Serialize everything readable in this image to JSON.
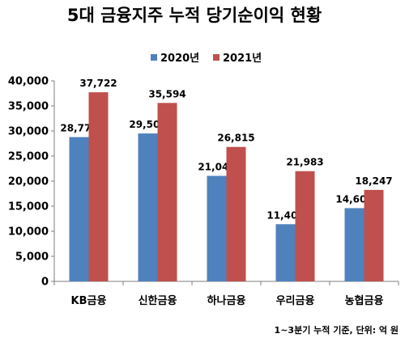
{
  "chart_data": {
    "type": "bar",
    "title": "5대 금융지주 누적 당기순이익 현황",
    "categories": [
      "KB금융",
      "신한금융",
      "하나금융",
      "우리금융",
      "농협금융"
    ],
    "series": [
      {
        "name": "2020년",
        "values": [
          28779,
          29502,
          21044,
          11404,
          14608
        ],
        "labels": [
          "28,779",
          "29,502",
          "21,044",
          "11,404",
          "14,608"
        ]
      },
      {
        "name": "2021년",
        "values": [
          37722,
          35594,
          26815,
          21983,
          18247
        ],
        "labels": [
          "37,722",
          "35,594",
          "26,815",
          "21,983",
          "18,247"
        ]
      }
    ],
    "colors": [
      "#4f81bd",
      "#c0504d"
    ],
    "ylim": [
      0,
      40000
    ],
    "ytick_step": 5000,
    "ytick_labels": [
      "0",
      "5,000",
      "10,000",
      "15,000",
      "20,000",
      "25,000",
      "30,000",
      "35,000",
      "40,000"
    ],
    "grid": false,
    "legend_position": "top",
    "xlabel": "",
    "ylabel": "",
    "footnote": "1~3분기 누적 기준, 단위: 억 원"
  }
}
